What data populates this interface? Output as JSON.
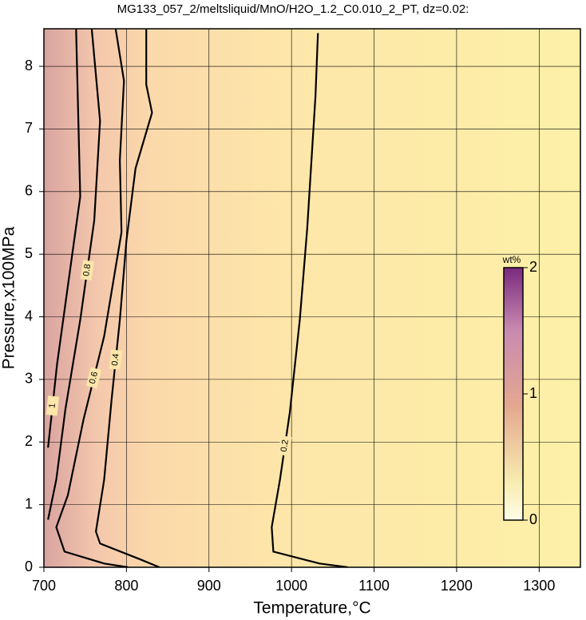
{
  "chart_data": {
    "type": "contour",
    "title": "MG133_057_2/meltsliquid/MnO/H2O_1.2_C0.010_2_PT, dz=0.02:",
    "xlabel": "Temperature,°C",
    "ylabel": "Pressure,x100MPa",
    "xlim": [
      700,
      1350
    ],
    "xticks": [
      700,
      800,
      900,
      1000,
      1100,
      1200,
      1300
    ],
    "ylim": [
      0,
      8.6
    ],
    "yticks": [
      0,
      1,
      2,
      3,
      4,
      5,
      6,
      7,
      8
    ],
    "grid": true,
    "line_color": "#000000",
    "contours": [
      {
        "level": 0.2,
        "x": [
          1032,
          1029,
          1019,
          1010,
          998,
          986,
          976,
          978,
          1034,
          1068
        ],
        "y": [
          8.53,
          7.52,
          5.41,
          3.95,
          2.48,
          1.4,
          0.64,
          0.25,
          0.06,
          0
        ]
      },
      {
        "level": 0.4,
        "x": [
          824,
          824,
          831,
          811,
          800,
          792,
          782,
          773,
          763,
          768,
          816,
          840
        ],
        "y": [
          8.59,
          7.71,
          7.26,
          6.37,
          5.22,
          3.95,
          2.68,
          1.4,
          0.57,
          0.38,
          0.13,
          0
        ]
      },
      {
        "level": 0.6,
        "x": [
          787,
          797,
          792,
          794,
          773,
          748,
          729,
          715,
          725,
          773,
          802
        ],
        "y": [
          8.59,
          7.77,
          6.5,
          5.35,
          3.69,
          2.36,
          1.15,
          0.64,
          0.25,
          0.06,
          0
        ]
      },
      {
        "level": 0.8,
        "x": [
          758,
          768,
          761,
          744,
          726,
          715,
          705
        ],
        "y": [
          8.59,
          7.13,
          5.54,
          3.95,
          2.52,
          1.4,
          0.76
        ]
      },
      {
        "level": 1,
        "x": [
          739,
          744,
          716,
          705
        ],
        "y": [
          8.59,
          5.92,
          3.25,
          1.91
        ]
      }
    ],
    "colorbar": {
      "label": "wt%",
      "lim": [
        0,
        2
      ],
      "ticks": [
        0,
        1,
        2
      ]
    }
  }
}
